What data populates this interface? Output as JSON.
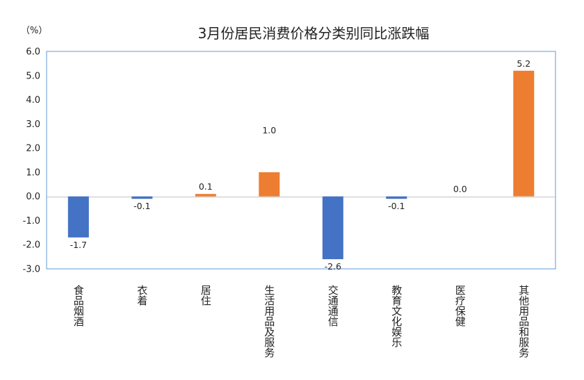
{
  "chart_data": {
    "type": "bar",
    "title": "3月份居民消费价格分类别同比涨跌幅",
    "unit_label": "（%）",
    "categories": [
      "食品烟酒",
      "衣着",
      "居住",
      "生活用品及服务",
      "交通通信",
      "教育文化娱乐",
      "医疗保健",
      "其他用品和服务"
    ],
    "values": [
      -1.7,
      -0.1,
      0.1,
      1.0,
      -2.6,
      -0.1,
      0.0,
      5.2
    ],
    "value_labels": [
      "-1.7",
      "-0.1",
      "0.1",
      "1.0",
      "-2.6",
      "-0.1",
      "0.0",
      "5.2"
    ],
    "ylim": [
      -3.0,
      6.0
    ],
    "yticks": [
      "6.0",
      "5.0",
      "4.0",
      "3.0",
      "2.0",
      "1.0",
      "0.0",
      "-1.0",
      "-2.0",
      "-3.0"
    ],
    "colors": {
      "negative": "#4472c4",
      "positive": "#ed7d31",
      "axis_frame": "#5b9bd5"
    },
    "legend": "none",
    "grid": false
  }
}
